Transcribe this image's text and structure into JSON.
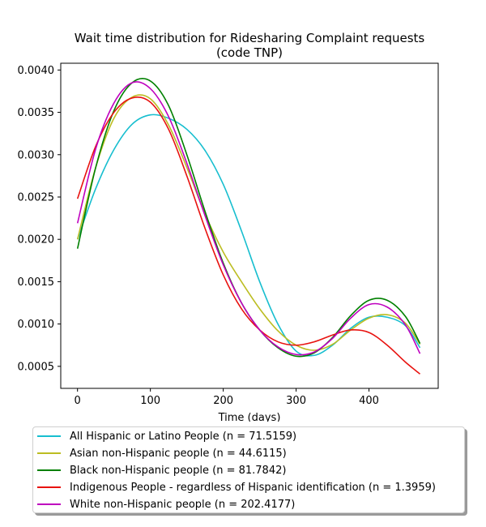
{
  "chart_data": {
    "type": "line",
    "title": "Wait time distribution  for Ridesharing Complaint  requests\n(code TNP)",
    "xlabel": "Time (days)",
    "ylabel": "",
    "xlim": [
      -23,
      495
    ],
    "ylim": [
      0.00024,
      0.00408
    ],
    "xticks": [
      0,
      100,
      200,
      300,
      400
    ],
    "yticks": [
      0.0005,
      0.001,
      0.0015,
      0.002,
      0.0025,
      0.003,
      0.0035,
      0.004
    ],
    "ytick_labels": [
      "0.0005",
      "0.0010",
      "0.0015",
      "0.0020",
      "0.0025",
      "0.0030",
      "0.0035",
      "0.0040"
    ],
    "grid": false,
    "legend_position": "below",
    "series": [
      {
        "name": "All Hispanic or Latino People (n = 71.5159)",
        "color": "#17becf",
        "x": [
          0,
          25,
          50,
          75,
          100,
          125,
          150,
          175,
          200,
          225,
          250,
          275,
          300,
          325,
          350,
          375,
          400,
          425,
          450,
          470
        ],
        "y": [
          0.002,
          0.0026,
          0.00306,
          0.00336,
          0.00347,
          0.00343,
          0.0033,
          0.00305,
          0.00265,
          0.0021,
          0.0015,
          0.001,
          0.00068,
          0.00063,
          0.00075,
          0.00095,
          0.00108,
          0.00108,
          0.00098,
          0.00072
        ]
      },
      {
        "name": "Asian non-Hispanic people (n = 44.6115)",
        "color": "#bcbd22",
        "x": [
          0,
          25,
          50,
          75,
          100,
          125,
          150,
          175,
          200,
          225,
          250,
          275,
          300,
          325,
          350,
          375,
          400,
          425,
          450,
          470
        ],
        "y": [
          0.002,
          0.00285,
          0.00343,
          0.00368,
          0.00366,
          0.00335,
          0.00285,
          0.0023,
          0.00185,
          0.0015,
          0.00118,
          0.00092,
          0.00075,
          0.00069,
          0.00076,
          0.00093,
          0.00107,
          0.00111,
          0.00101,
          0.00076
        ]
      },
      {
        "name": "Black non-Hispanic people (n = 81.7842)",
        "color": "#008000",
        "x": [
          0,
          25,
          50,
          75,
          100,
          125,
          150,
          175,
          200,
          225,
          250,
          275,
          300,
          325,
          350,
          375,
          400,
          425,
          450,
          470
        ],
        "y": [
          0.00189,
          0.00285,
          0.00352,
          0.00385,
          0.00387,
          0.00358,
          0.003,
          0.00233,
          0.00172,
          0.00125,
          0.00093,
          0.00072,
          0.00062,
          0.00066,
          0.00084,
          0.0011,
          0.00128,
          0.00128,
          0.00109,
          0.00077
        ]
      },
      {
        "name": "Indigenous People - regardless of Hispanic identification (n = 1.3959)",
        "color": "#e8120f",
        "x": [
          0,
          25,
          50,
          75,
          100,
          125,
          150,
          175,
          200,
          225,
          250,
          275,
          300,
          325,
          350,
          375,
          400,
          425,
          450,
          470
        ],
        "y": [
          0.00248,
          0.0031,
          0.0035,
          0.00367,
          0.00362,
          0.0033,
          0.00275,
          0.00213,
          0.00158,
          0.00118,
          0.00093,
          0.00079,
          0.00075,
          0.00079,
          0.00087,
          0.00093,
          0.0009,
          0.00075,
          0.00055,
          0.00041
        ]
      },
      {
        "name": "White non-Hispanic people (n = 202.4177)",
        "color": "#bf00bf",
        "x": [
          0,
          25,
          50,
          75,
          100,
          125,
          150,
          175,
          200,
          225,
          250,
          275,
          300,
          325,
          350,
          375,
          400,
          425,
          450,
          470
        ],
        "y": [
          0.00219,
          0.00307,
          0.00361,
          0.00385,
          0.00378,
          0.00345,
          0.0029,
          0.00228,
          0.0017,
          0.00125,
          0.00093,
          0.00073,
          0.00064,
          0.00067,
          0.00083,
          0.00107,
          0.00123,
          0.0012,
          0.00099,
          0.00065
        ]
      }
    ]
  }
}
